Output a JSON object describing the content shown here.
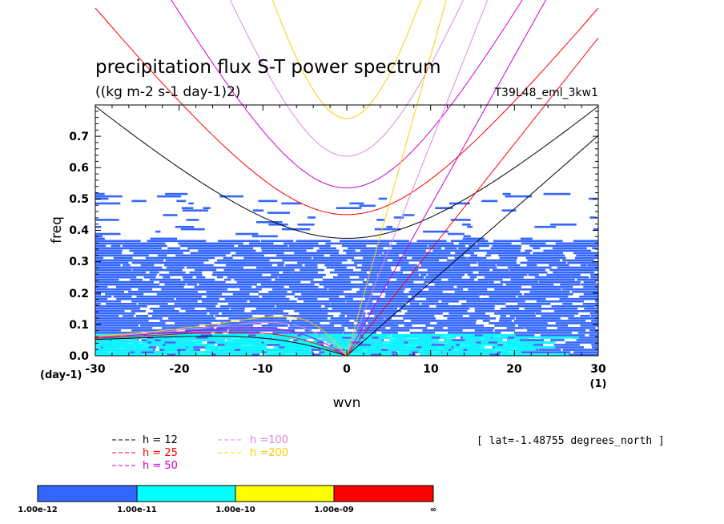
{
  "chart_data": {
    "type": "heatmap",
    "title": "precipitation flux S-T power spectrum",
    "subtitle": "((kg m-2 s-1 day-1)2)",
    "experiment": "T39L48_eml_3kw1",
    "xlabel": "wvn",
    "ylabel": "freq",
    "x_unit": "(1)",
    "y_unit": "(day-1)",
    "xlim": [
      -30,
      30
    ],
    "ylim": [
      0,
      0.8
    ],
    "x_ticks": [
      "-30",
      "-20",
      "-10",
      "0",
      "10",
      "20",
      "30"
    ],
    "y_ticks": [
      "0.0",
      "0.1",
      "0.2",
      "0.3",
      "0.4",
      "0.5",
      "0.6",
      "0.7"
    ],
    "latitude_note": "[ lat=-1.48755 degrees_north ]",
    "contour_levels": [
      {
        "label": "1.00e-12",
        "color": "#3366ff"
      },
      {
        "label": "1.00e-11",
        "color": "#00ffff"
      },
      {
        "label": "1.00e-10",
        "color": "#ffff00"
      },
      {
        "label": "1.00e-09",
        "color": "#ff0000"
      },
      {
        "label": "∞"
      }
    ],
    "power_patches": [
      {
        "level": "1.00e-12",
        "x": [
          -30,
          30
        ],
        "y": [
          0.0,
          0.37
        ]
      },
      {
        "level": "1.00e-12",
        "x": [
          -30,
          30
        ],
        "y": [
          0.37,
          0.52
        ],
        "note": "sparse"
      },
      {
        "level": "1.00e-11",
        "x": [
          -30,
          20
        ],
        "y": [
          0.0,
          0.07
        ]
      }
    ],
    "dispersion_curves": [
      {
        "h": 12,
        "label": "h = 12",
        "color": "#000000"
      },
      {
        "h": 25,
        "label": "h = 25",
        "color": "#ff0000"
      },
      {
        "h": 50,
        "label": "h = 50",
        "color": "#cc00cc"
      },
      {
        "h": 100,
        "label": "h =100",
        "color": "#dd88dd"
      },
      {
        "h": 200,
        "label": "h =200",
        "color": "#ffcc00"
      }
    ]
  }
}
